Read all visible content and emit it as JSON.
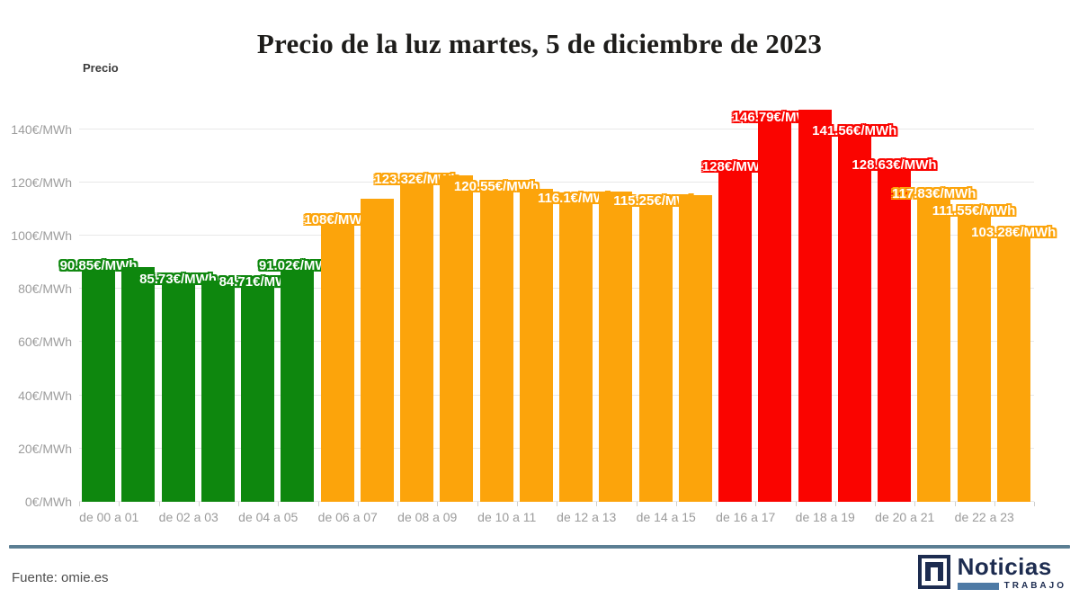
{
  "title": "Precio de la luz martes, 5 de diciembre de 2023",
  "y_axis_title": "Precio",
  "footer": {
    "source": "Fuente: omie.es"
  },
  "logo": {
    "name": "Noticias",
    "sub": "TRABAJO"
  },
  "colors": {
    "green": "#0e870e",
    "orange": "#fca40b",
    "red": "#fa0400",
    "grid": "#e8e8e8",
    "axis_text": "#9d9d9d",
    "divider": "#5b7e93",
    "logo_navy": "#1d2c50",
    "logo_steel": "#4e7aa5"
  },
  "chart_data": {
    "type": "bar",
    "title": "Precio de la luz martes, 5 de diciembre de 2023",
    "xlabel": "",
    "ylabel": "Precio",
    "unit": "€/MWh",
    "ylim": [
      0,
      155
    ],
    "grid": true,
    "yticks": [
      {
        "value": 0,
        "label": "0€/MWh"
      },
      {
        "value": 20,
        "label": "20€/MWh"
      },
      {
        "value": 40,
        "label": "40€/MWh"
      },
      {
        "value": 60,
        "label": "60€/MWh"
      },
      {
        "value": 80,
        "label": "80€/MWh"
      },
      {
        "value": 100,
        "label": "100€/MWh"
      },
      {
        "value": 120,
        "label": "120€/MWh"
      },
      {
        "value": 140,
        "label": "140€/MWh"
      }
    ],
    "x_group_labels": [
      "de 00 a 01",
      "de 02 a 03",
      "de 04 a 05",
      "de 06 a 07",
      "de 08 a 09",
      "de 10 a 11",
      "de 12 a 13",
      "de 14 a 15",
      "de 16 a 17",
      "de 18 a 19",
      "de 20 a 21",
      "de 22 a 23"
    ],
    "bars": [
      {
        "hour": 0,
        "value": 90.85,
        "color": "green",
        "label": "90.85€/MWh"
      },
      {
        "hour": 1,
        "value": 88.2,
        "color": "green",
        "label": null
      },
      {
        "hour": 2,
        "value": 85.73,
        "color": "green",
        "label": "85.73€/MWh"
      },
      {
        "hour": 3,
        "value": 83.0,
        "color": "green",
        "label": null
      },
      {
        "hour": 4,
        "value": 84.71,
        "color": "green",
        "label": "84.71€/MWh"
      },
      {
        "hour": 5,
        "value": 91.02,
        "color": "green",
        "label": "91.02€/MWh"
      },
      {
        "hour": 6,
        "value": 108.0,
        "color": "orange",
        "label": "108€/MWh"
      },
      {
        "hour": 7,
        "value": 113.7,
        "color": "orange",
        "label": null
      },
      {
        "hour": 8,
        "value": 123.32,
        "color": "orange",
        "label": "123.32€/MWh"
      },
      {
        "hour": 9,
        "value": 122.5,
        "color": "orange",
        "label": null
      },
      {
        "hour": 10,
        "value": 120.55,
        "color": "orange",
        "label": "120.55€/MWh"
      },
      {
        "hour": 11,
        "value": 117.7,
        "color": "orange",
        "label": null
      },
      {
        "hour": 12,
        "value": 116.1,
        "color": "orange",
        "label": "116.1€/MWh"
      },
      {
        "hour": 13,
        "value": 116.4,
        "color": "orange",
        "label": null
      },
      {
        "hour": 14,
        "value": 115.25,
        "color": "orange",
        "label": "115.25€/MWh"
      },
      {
        "hour": 15,
        "value": 115.3,
        "color": "orange",
        "label": null
      },
      {
        "hour": 16,
        "value": 128.0,
        "color": "red",
        "label": "128€/MWh"
      },
      {
        "hour": 17,
        "value": 146.79,
        "color": "red",
        "label": "146.79€/MWh"
      },
      {
        "hour": 18,
        "value": 147.4,
        "color": "red",
        "label": null
      },
      {
        "hour": 19,
        "value": 141.56,
        "color": "red",
        "label": "141.56€/MWh"
      },
      {
        "hour": 20,
        "value": 128.63,
        "color": "red",
        "label": "128.63€/MWh"
      },
      {
        "hour": 21,
        "value": 117.83,
        "color": "orange",
        "label": "117.83€/MWh"
      },
      {
        "hour": 22,
        "value": 111.55,
        "color": "orange",
        "label": "111.55€/MWh"
      },
      {
        "hour": 23,
        "value": 103.28,
        "color": "orange",
        "label": "103.28€/MWh"
      }
    ]
  }
}
